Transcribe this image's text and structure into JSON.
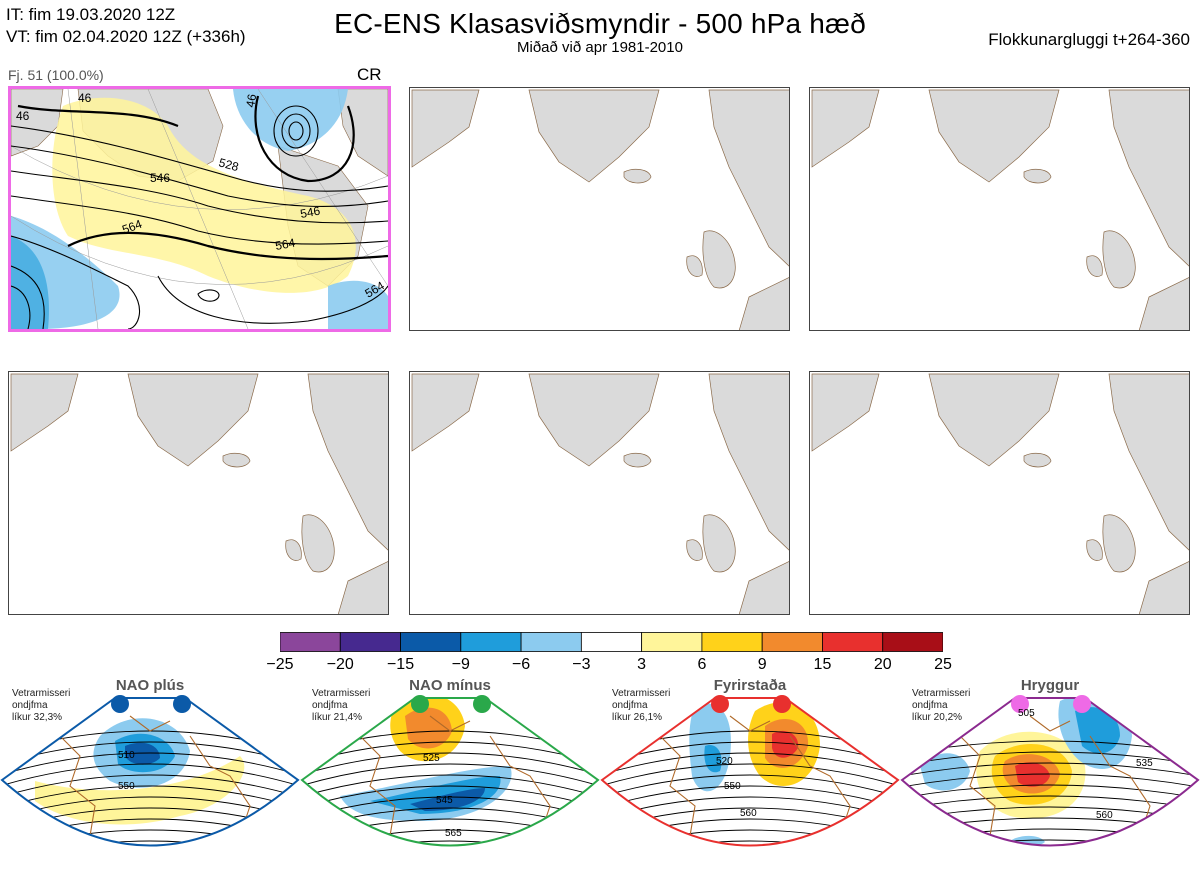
{
  "header": {
    "it_line": "IT: fim 19.03.2020 12Z",
    "vt_line": "VT: fim 02.04.2020 12Z  (+336h)",
    "title": "EC-ENS Klasasviðsmyndir - 500 hPa hæð",
    "subtitle": "Miðað við apr 1981-2010",
    "window": "Flokkunargluggi t+264-360"
  },
  "cluster": {
    "label": "Fj. 51 (100.0%)",
    "code": "CR",
    "contour_labels": [
      "546",
      "528",
      "546",
      "564",
      "564",
      "546",
      "564",
      "46",
      "46",
      "46"
    ]
  },
  "colorbar": {
    "ticks": [
      "−25",
      "−20",
      "−15",
      "−9",
      "−6",
      "−3",
      "3",
      "6",
      "9",
      "15",
      "20",
      "25"
    ],
    "colors": [
      "#8b469b",
      "#46298f",
      "#0b5aa8",
      "#1f9ddb",
      "#8ccbef",
      "#ffffff",
      "#fff59a",
      "#ffd21a",
      "#f28a2d",
      "#e8302e",
      "#a80e17"
    ]
  },
  "regimes": [
    {
      "title": "NAO plús",
      "note1": "Vetrarmisseri",
      "note2": "ondjfma",
      "note3": "líkur 32,3%",
      "dot_color": "#0b5aa8",
      "border_color": "#0b5aa8",
      "labels": [
        "510",
        "550"
      ]
    },
    {
      "title": "NAO mínus",
      "note1": "Vetrarmisseri",
      "note2": "ondjfma",
      "note3": "líkur 21,4%",
      "dot_color": "#2aa84a",
      "border_color": "#2aa84a",
      "labels": [
        "525",
        "545",
        "565"
      ]
    },
    {
      "title": "Fyrirstaða",
      "note1": "Vetrarmisseri",
      "note2": "ondjfma",
      "note3": "líkur 26,1%",
      "dot_color": "#e8302e",
      "border_color": "#e8302e",
      "labels": [
        "520",
        "550",
        "560"
      ]
    },
    {
      "title": "Hryggur",
      "note1": "Vetrarmisseri",
      "note2": "ondjfma",
      "note3": "líkur 20,2%",
      "dot_color": "#ee6ae6",
      "border_color": "#8b2a8f",
      "labels": [
        "505",
        "535",
        "560"
      ]
    }
  ]
}
